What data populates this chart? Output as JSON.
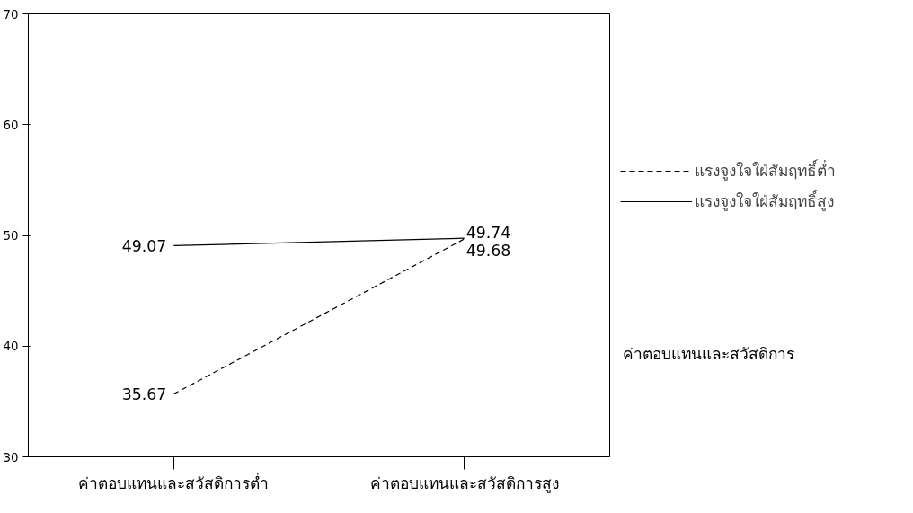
{
  "chart_data": {
    "type": "line",
    "xlabel": "ค่าตอบแทนและสวัสดิการ",
    "categories": [
      "ค่าตอบแทนและสวัสดิการต่ำ",
      "ค่าตอบแทนและสวัสดิการสูง"
    ],
    "series": [
      {
        "name": "แรงจูงใจใฝ่สัมฤทธิ์ต่ำ",
        "color": "#000000",
        "line_style": "dashed",
        "values": [
          35.67,
          49.68
        ]
      },
      {
        "name": "แรงจูงใจใฝ่สัมฤทธิ์สูง",
        "color": "#000000",
        "line_style": "solid",
        "values": [
          49.07,
          49.74
        ]
      }
    ],
    "ylim": [
      30,
      70
    ],
    "yticks": [
      30,
      40,
      50,
      60,
      70
    ],
    "grid": false,
    "legend": "right",
    "marker": "none",
    "data_labels": true
  }
}
